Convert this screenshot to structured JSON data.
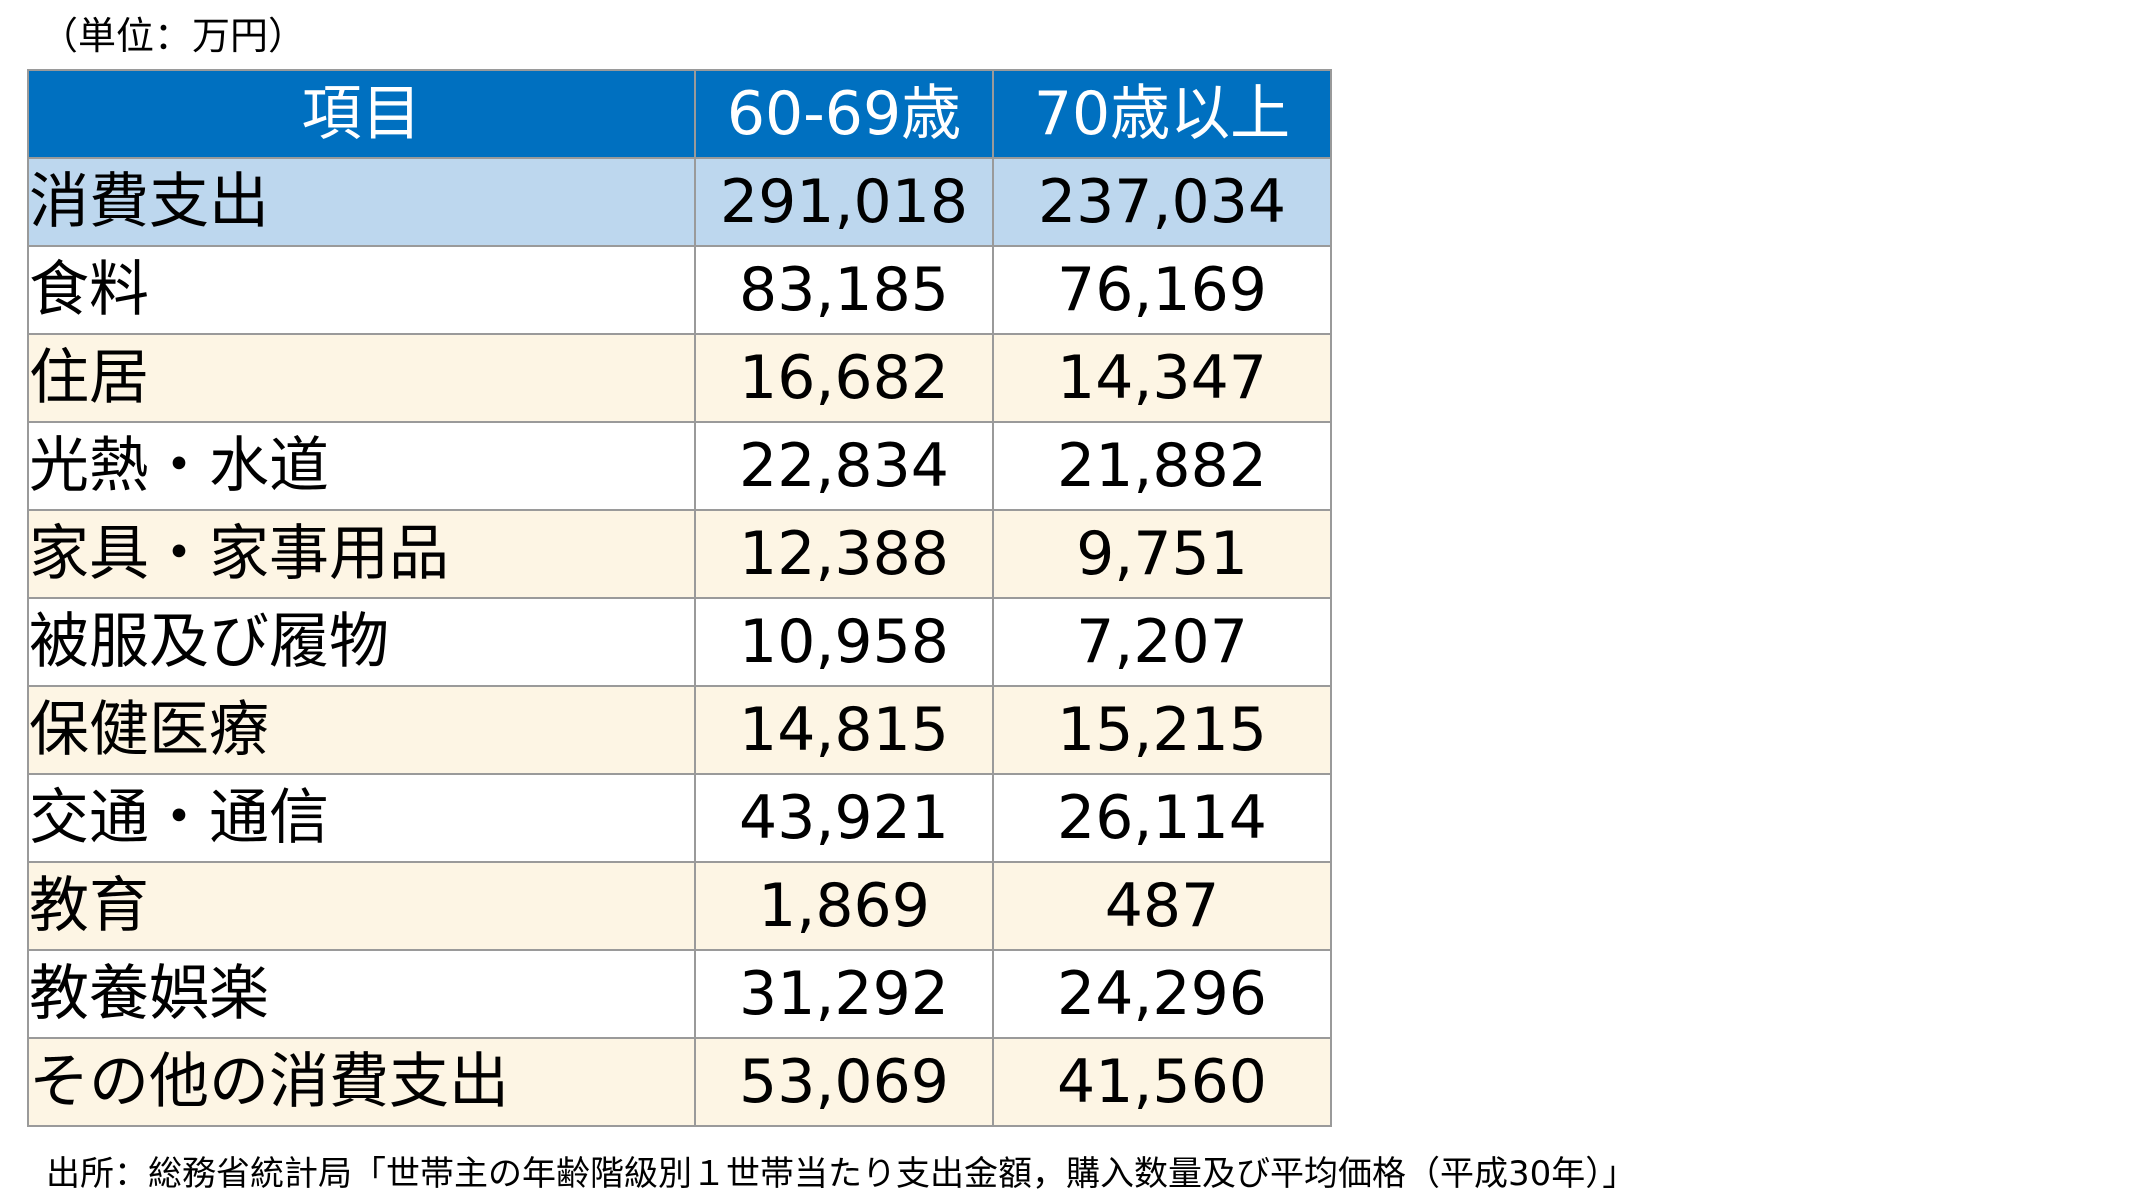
{
  "unit_note": "（単位：万円）",
  "table": {
    "headers": [
      "項目",
      "60-69歳",
      "70歳以上"
    ],
    "rows": [
      {
        "label": "消費支出",
        "v60": "291,018",
        "v70": "237,034"
      },
      {
        "label": "食料",
        "v60": "83,185",
        "v70": "76,169"
      },
      {
        "label": "住居",
        "v60": "16,682",
        "v70": "14,347"
      },
      {
        "label": "光熱・水道",
        "v60": "22,834",
        "v70": "21,882"
      },
      {
        "label": "家具・家事用品",
        "v60": "12,388",
        "v70": "9,751"
      },
      {
        "label": "被服及び履物",
        "v60": "10,958",
        "v70": "7,207"
      },
      {
        "label": "保健医療",
        "v60": "14,815",
        "v70": "15,215"
      },
      {
        "label": "交通・通信",
        "v60": "43,921",
        "v70": "26,114"
      },
      {
        "label": "教育",
        "v60": "1,869",
        "v70": "487"
      },
      {
        "label": "教養娯楽",
        "v60": "31,292",
        "v70": "24,296"
      },
      {
        "label": "その他の消費支出",
        "v60": "53,069",
        "v70": "41,560"
      }
    ]
  },
  "colors": {
    "header_bg": "#0070c0",
    "total_row_bg": "#bdd7ee",
    "shaded_row_bg": "#fdf5e4"
  },
  "source_note": "出所：総務省統計局「世帯主の年齢階級別１世帯当たり支出金額，購入数量及び平均価格（平成30年）」"
}
